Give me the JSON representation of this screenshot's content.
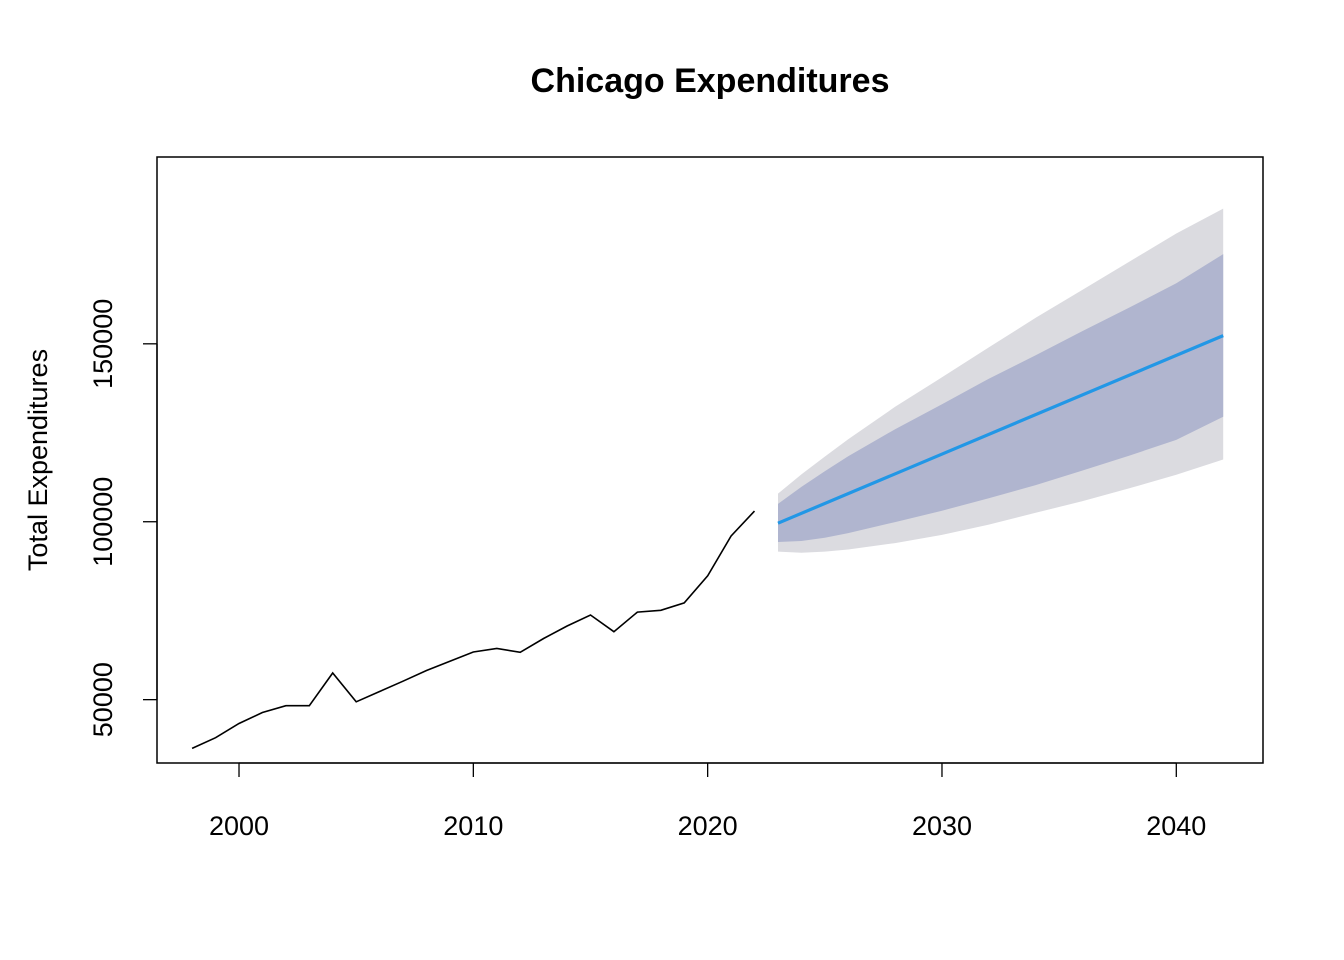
{
  "chart_data": {
    "type": "line",
    "title": "Chicago Expenditures",
    "xlabel": "",
    "ylabel": "Total Expenditures",
    "xlim": [
      1996.5,
      2043.7
    ],
    "ylim": [
      32200,
      202500
    ],
    "x_ticks": [
      2000,
      2010,
      2020,
      2030,
      2040
    ],
    "x_tick_labels": [
      "2000",
      "2010",
      "2020",
      "2030",
      "2040"
    ],
    "y_ticks": [
      50000,
      100000,
      150000
    ],
    "y_tick_labels": [
      "50000",
      "100000",
      "150000"
    ],
    "grid": false,
    "legend": "none",
    "colors": {
      "history": "#000000",
      "forecast": "#2297E6",
      "interval_80": "#B0B5CF",
      "interval_95": "#DBDBE0",
      "frame": "#000000"
    },
    "series": [
      {
        "type": "line",
        "x": [
          1998,
          1999,
          2000,
          2001,
          2002,
          2003,
          2004,
          2005,
          2006,
          2007,
          2008,
          2009,
          2010,
          2011,
          2012,
          2013,
          2014,
          2015,
          2016,
          2017,
          2018,
          2019,
          2020,
          2021,
          2022
        ],
        "values": [
          36300,
          39300,
          43300,
          46400,
          48300,
          48300,
          57500,
          49400,
          52300,
          55200,
          58200,
          60800,
          63400,
          64400,
          63300,
          67200,
          70700,
          73800,
          69100,
          74600,
          75100,
          77200,
          84800,
          96000,
          103000
        ]
      },
      {
        "type": "forecast",
        "x": [
          2023,
          2042
        ],
        "values": [
          99600,
          152300
        ]
      },
      {
        "type": "interval-80",
        "x": [
          2023,
          2024,
          2025,
          2026,
          2028,
          2030,
          2032,
          2034,
          2036,
          2038,
          2040,
          2042
        ],
        "upper": [
          105000,
          109800,
          114200,
          118400,
          126000,
          133000,
          140200,
          146800,
          153600,
          160200,
          167000,
          175200
        ],
        "lower": [
          94300,
          94600,
          95500,
          96800,
          99900,
          103100,
          106600,
          110300,
          114400,
          118600,
          123000,
          129500
        ]
      },
      {
        "type": "interval-95",
        "x": [
          2023,
          2024,
          2025,
          2026,
          2028,
          2030,
          2032,
          2034,
          2036,
          2038,
          2040,
          2042
        ],
        "upper": [
          107900,
          113300,
          118300,
          123200,
          132300,
          140600,
          149000,
          157300,
          165200,
          173100,
          181000,
          188000
        ],
        "lower": [
          91600,
          91300,
          91600,
          92200,
          94000,
          96300,
          99200,
          102500,
          105800,
          109400,
          113200,
          117500
        ]
      }
    ]
  }
}
